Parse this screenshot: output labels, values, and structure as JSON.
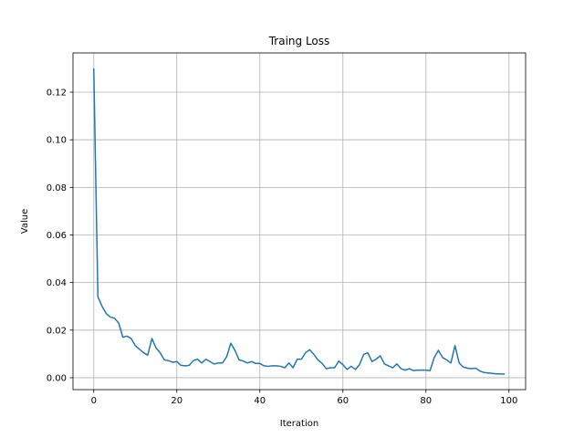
{
  "chart_data": {
    "type": "line",
    "title": "Traing Loss",
    "xlabel": "Iteration",
    "ylabel": "Value",
    "xlim": [
      -5,
      104
    ],
    "ylim": [
      -0.005,
      0.1365
    ],
    "xticks": [
      0,
      20,
      40,
      60,
      80,
      100
    ],
    "xtick_labels": [
      "0",
      "20",
      "40",
      "60",
      "80",
      "100"
    ],
    "yticks": [
      0.0,
      0.02,
      0.04,
      0.06,
      0.08,
      0.1,
      0.12
    ],
    "ytick_labels": [
      "0.00",
      "0.02",
      "0.04",
      "0.06",
      "0.08",
      "0.10",
      "0.12"
    ],
    "grid": true,
    "series": [
      {
        "color": "#1f77b4",
        "x": [
          0,
          1,
          2,
          3,
          4,
          5,
          6,
          7,
          8,
          9,
          10,
          11,
          12,
          13,
          14,
          15,
          16,
          17,
          18,
          19,
          20,
          21,
          22,
          23,
          24,
          25,
          26,
          27,
          28,
          29,
          30,
          31,
          32,
          33,
          34,
          35,
          36,
          37,
          38,
          39,
          40,
          41,
          42,
          43,
          44,
          45,
          46,
          47,
          48,
          49,
          50,
          51,
          52,
          53,
          54,
          55,
          56,
          57,
          58,
          59,
          60,
          61,
          62,
          63,
          64,
          65,
          66,
          67,
          68,
          69,
          70,
          71,
          72,
          73,
          74,
          75,
          76,
          77,
          78,
          79,
          80,
          81,
          82,
          83,
          84,
          85,
          86,
          87,
          88,
          89,
          90,
          91,
          92,
          93,
          94,
          95,
          96,
          97,
          98,
          99
        ],
        "values": [
          0.13,
          0.034,
          0.03,
          0.027,
          0.0255,
          0.025,
          0.023,
          0.017,
          0.0175,
          0.0165,
          0.0135,
          0.012,
          0.0105,
          0.0095,
          0.0165,
          0.0125,
          0.0105,
          0.0075,
          0.0072,
          0.0065,
          0.0068,
          0.0052,
          0.005,
          0.0052,
          0.0072,
          0.0078,
          0.0062,
          0.0078,
          0.0068,
          0.0058,
          0.0062,
          0.0062,
          0.0088,
          0.0145,
          0.0115,
          0.0075,
          0.007,
          0.0062,
          0.0068,
          0.006,
          0.006,
          0.005,
          0.0048,
          0.005,
          0.005,
          0.0048,
          0.0042,
          0.0062,
          0.0042,
          0.0078,
          0.0078,
          0.0105,
          0.0118,
          0.0098,
          0.0075,
          0.006,
          0.0038,
          0.0042,
          0.0042,
          0.007,
          0.0055,
          0.0035,
          0.0048,
          0.0035,
          0.0055,
          0.0098,
          0.0105,
          0.0068,
          0.0078,
          0.0092,
          0.0058,
          0.005,
          0.0042,
          0.0058,
          0.0038,
          0.0032,
          0.0038,
          0.003,
          0.0032,
          0.0032,
          0.0032,
          0.003,
          0.0085,
          0.0115,
          0.0085,
          0.0075,
          0.0062,
          0.0135,
          0.0062,
          0.0045,
          0.004,
          0.0038,
          0.004,
          0.0028,
          0.0022,
          0.002,
          0.0018,
          0.0016,
          0.0016,
          0.0015
        ]
      }
    ]
  }
}
